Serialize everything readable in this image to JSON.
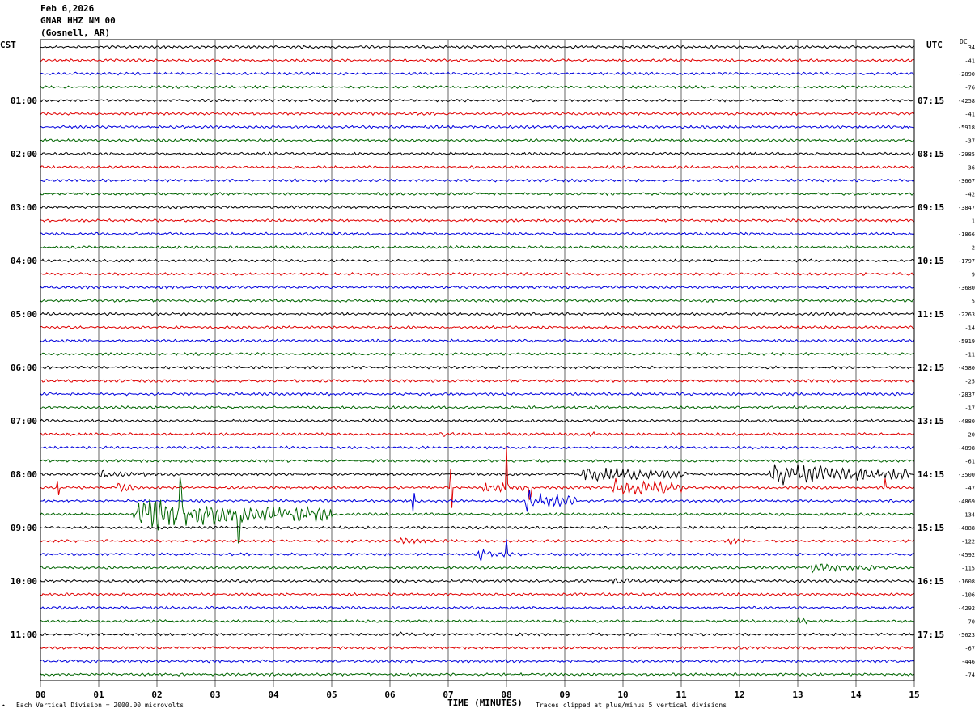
{
  "header": {
    "date": "Feb 6,2026",
    "station": "GNAR HHZ NM 00",
    "location": "(Gosnell, AR)"
  },
  "left_timezone": "CST",
  "right_timezone": "UTC",
  "dc_label": "DC",
  "footer": {
    "scale_note": "Each Vertical Division = 2000.00 microvolts",
    "clip_note": "Traces clipped at plus/minus 5 vertical divisions",
    "mark": "•"
  },
  "colors": {
    "trace_cycle": [
      "#000000",
      "#e00000",
      "#0000dd",
      "#006400"
    ],
    "grid": "#000000"
  },
  "chart_data": {
    "type": "line",
    "xlabel": "TIME (MINUTES)",
    "x_ticks": [
      "00",
      "01",
      "02",
      "03",
      "04",
      "05",
      "06",
      "07",
      "08",
      "09",
      "10",
      "11",
      "12",
      "13",
      "14",
      "15"
    ],
    "xlim": [
      0,
      15
    ],
    "left_time_labels": [
      "01:00",
      "02:00",
      "03:00",
      "04:00",
      "05:00",
      "06:00",
      "07:00",
      "08:00",
      "09:00",
      "10:00",
      "11:00"
    ],
    "right_time_labels": [
      "07:15",
      "08:15",
      "09:15",
      "10:15",
      "11:15",
      "12:15",
      "13:15",
      "14:15",
      "15:15",
      "16:15",
      "17:15"
    ],
    "trace_count": 48,
    "label_every_n_traces": 4,
    "dc_offsets": [
      "34",
      "-41",
      "-2890",
      "-76",
      "-4258",
      "-41",
      "-5918",
      "-37",
      "-2985",
      "-36",
      "-3667",
      "-42",
      "-3847",
      "1",
      "-1866",
      "-2",
      "-1797",
      "9",
      "-3680",
      "5",
      "-2263",
      "-14",
      "-5919",
      "-11",
      "-4580",
      "-25",
      "-2837",
      "-17",
      "-4880",
      "-20",
      "-4898",
      "-61",
      "-3500",
      "-47",
      "-4869",
      "-134",
      "-4888",
      "-122",
      "-4592",
      "-115",
      "-1608",
      "-106",
      "-4292",
      "-70",
      "-5623",
      "-67",
      "-446",
      "-74"
    ],
    "events": [
      {
        "trace": 29,
        "start_min": 6.8,
        "end_min": 7.9,
        "amplitude": 4
      },
      {
        "trace": 29,
        "start_min": 9.4,
        "end_min": 9.9,
        "amplitude": 4
      },
      {
        "trace": 32,
        "start_min": 1.0,
        "end_min": 2.4,
        "amplitude": 6
      },
      {
        "trace": 32,
        "start_min": 9.3,
        "end_min": 11.2,
        "amplitude": 14
      },
      {
        "trace": 32,
        "start_min": 12.5,
        "end_min": 15.0,
        "amplitude": 18
      },
      {
        "trace": 33,
        "start_min": 1.3,
        "end_min": 1.6,
        "amplitude": 10
      },
      {
        "trace": 33,
        "start_min": 7.6,
        "end_min": 8.3,
        "amplitude": 12
      },
      {
        "trace": 33,
        "start_min": 9.8,
        "end_min": 11.0,
        "amplitude": 18
      },
      {
        "trace": 34,
        "start_min": 8.3,
        "end_min": 9.2,
        "amplitude": 18
      },
      {
        "trace": 35,
        "start_min": 1.6,
        "end_min": 5.0,
        "amplitude": 26
      },
      {
        "trace": 37,
        "start_min": 6.1,
        "end_min": 7.3,
        "amplitude": 5
      },
      {
        "trace": 37,
        "start_min": 11.8,
        "end_min": 12.2,
        "amplitude": 6
      },
      {
        "trace": 38,
        "start_min": 7.5,
        "end_min": 8.3,
        "amplitude": 10
      },
      {
        "trace": 39,
        "start_min": 13.2,
        "end_min": 14.4,
        "amplitude": 8
      },
      {
        "trace": 40,
        "start_min": 6.1,
        "end_min": 6.3,
        "amplitude": 7
      },
      {
        "trace": 40,
        "start_min": 9.8,
        "end_min": 10.5,
        "amplitude": 6
      },
      {
        "trace": 43,
        "start_min": 13.0,
        "end_min": 13.2,
        "amplitude": 7
      },
      {
        "trace": 44,
        "start_min": 6.1,
        "end_min": 6.5,
        "amplitude": 5
      }
    ],
    "spikes": [
      {
        "trace": 33,
        "min": 0.3,
        "amplitude": 10
      },
      {
        "trace": 33,
        "min": 7.05,
        "amplitude": 28
      },
      {
        "trace": 33,
        "min": 8.0,
        "amplitude": 55
      },
      {
        "trace": 33,
        "min": 8.4,
        "amplitude": 18
      },
      {
        "trace": 33,
        "min": 14.5,
        "amplitude": 16
      },
      {
        "trace": 34,
        "min": 6.4,
        "amplitude": 14
      },
      {
        "trace": 35,
        "min": 2.4,
        "amplitude": 50
      },
      {
        "trace": 35,
        "min": 3.4,
        "amplitude": 45
      },
      {
        "trace": 38,
        "min": 8.0,
        "amplitude": 20
      }
    ]
  }
}
